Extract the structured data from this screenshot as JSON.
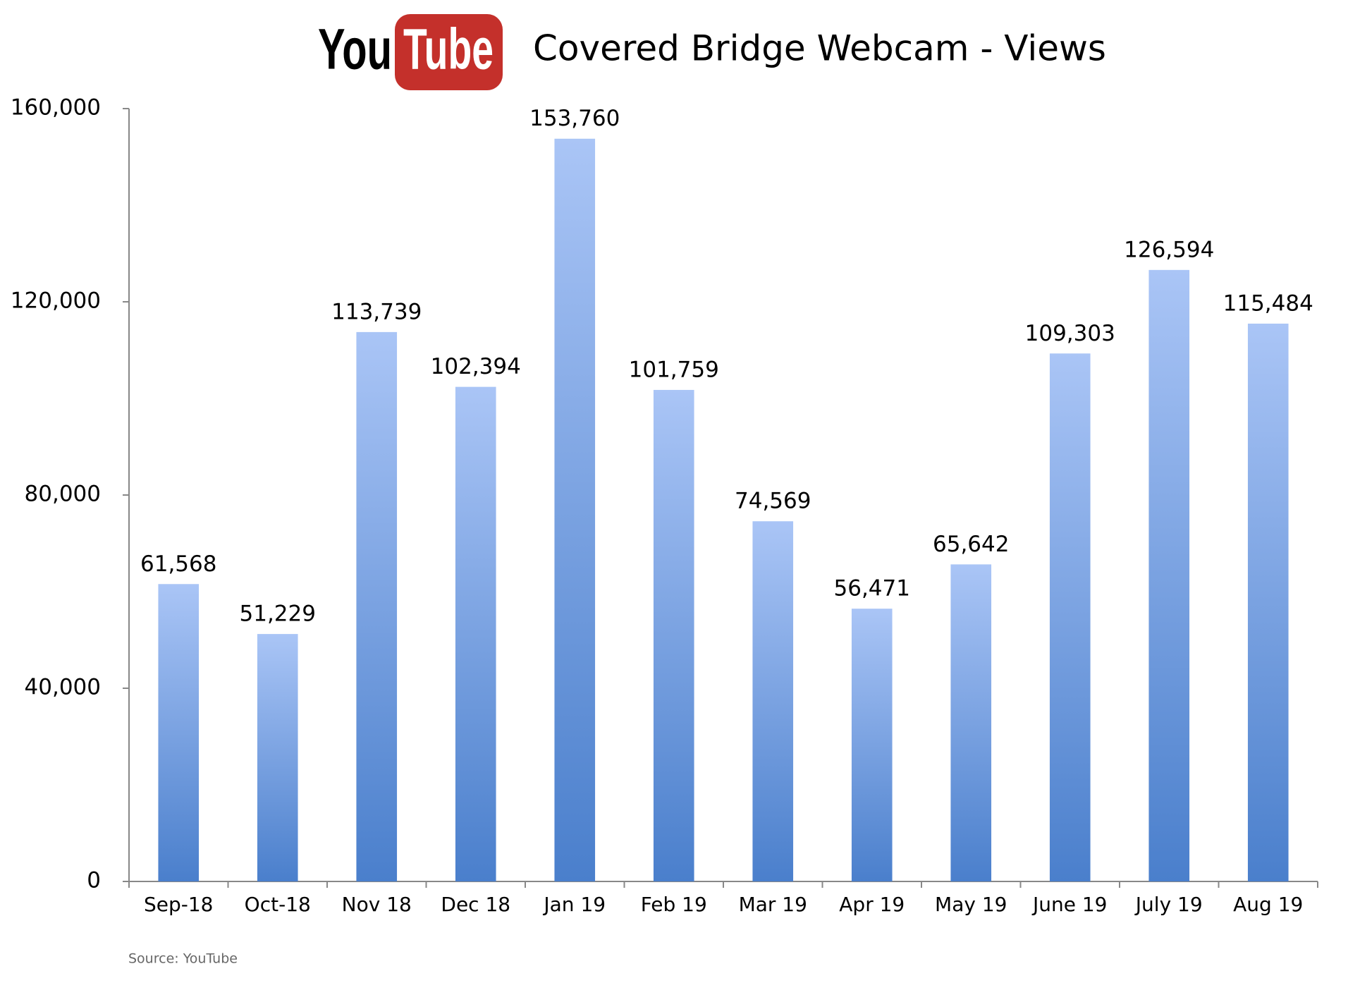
{
  "chart_data": {
    "type": "bar",
    "title": "Covered Bridge Webcam - Views",
    "logo_left": "You",
    "logo_right": "Tube",
    "source": "Source: YouTube",
    "categories": [
      "Sep-18",
      "Oct-18",
      "Nov 18",
      "Dec 18",
      "Jan 19",
      "Feb 19",
      "Mar 19",
      "Apr 19",
      "May 19",
      "June 19",
      "July 19",
      "Aug 19"
    ],
    "values": [
      61568,
      51229,
      113739,
      102394,
      153760,
      101759,
      74569,
      56471,
      65642,
      109303,
      126594,
      115484
    ],
    "value_labels": [
      "61,568",
      "51,229",
      "113,739",
      "102,394",
      "153,760",
      "101,759",
      "74,569",
      "56,471",
      "65,642",
      "109,303",
      "126,594",
      "115,484"
    ],
    "color": "#4a7fcc",
    "ylim": [
      0,
      160000
    ],
    "yticks": [
      0,
      {
        "value": 40000,
        "label": "40,000"
      },
      {
        "value": 80000,
        "label": "80,000"
      },
      {
        "value": 120000,
        "label": "120,000"
      },
      {
        "value": 160000,
        "label": "160,000"
      }
    ],
    "grid": false
  }
}
